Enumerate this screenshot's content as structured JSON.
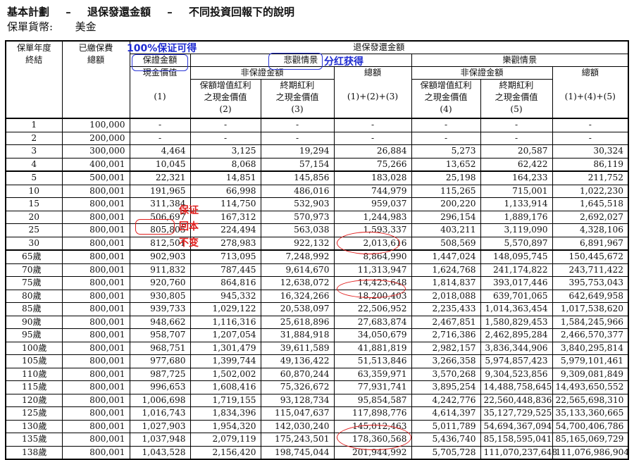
{
  "header": {
    "line1_a": "基本計劃",
    "line1_sep1": "–",
    "line1_b": "退保發還金額",
    "line1_sep2": "–",
    "line1_c": "不同投資回報下的說明",
    "line2_label": "保單貨幣:",
    "line2_value": "美金"
  },
  "table_head": {
    "col_year": "保單年度\n終結",
    "col_paid": "已繳保費\n總額",
    "surrender_group": "退保發還金額",
    "guaranteed": "保證金額",
    "pessimistic": "悲觀情景",
    "optimistic": "樂觀情景",
    "non_guaranteed_1": "非保證金額",
    "non_guaranteed_2": "非保證金額",
    "total_1": "總額",
    "total_2": "總額",
    "cash_value": "現金價值",
    "cash_value_no": "(1)",
    "rb_1": "保額增值紅利\n之現金價值",
    "rb_1_no": "(2)",
    "tb_1": "終期紅利\n之現金價值",
    "tb_1_no": "(3)",
    "total_1_no": "(1)+(2)+(3)",
    "rb_2": "保額增值紅利\n之現金價值",
    "rb_2_no": "(4)",
    "tb_2": "終期紅利\n之現金價值",
    "tb_2_no": "(5)",
    "total_2_no": "(1)+(4)+(5)"
  },
  "rows": [
    [
      "1",
      "100,000",
      "-",
      "-",
      "-",
      "-",
      "-",
      "-",
      "-"
    ],
    [
      "2",
      "200,000",
      "-",
      "-",
      "-",
      "-",
      "-",
      "-",
      "-"
    ],
    [
      "3",
      "300,000",
      "4,464",
      "3,125",
      "19,294",
      "26,884",
      "5,273",
      "20,587",
      "30,324"
    ],
    [
      "4",
      "400,001",
      "10,045",
      "8,068",
      "57,154",
      "75,266",
      "13,652",
      "62,422",
      "86,119"
    ],
    [
      "5",
      "500,001",
      "22,321",
      "14,851",
      "145,856",
      "183,028",
      "25,198",
      "164,233",
      "211,752"
    ],
    [
      "10",
      "800,001",
      "191,965",
      "66,998",
      "486,016",
      "744,979",
      "115,265",
      "715,001",
      "1,022,230"
    ],
    [
      "15",
      "800,001",
      "311,384",
      "114,750",
      "532,903",
      "959,037",
      "200,220",
      "1,133,914",
      "1,645,518"
    ],
    [
      "20",
      "800,001",
      "506,697",
      "167,312",
      "570,973",
      "1,244,983",
      "296,154",
      "1,889,176",
      "2,692,027"
    ],
    [
      "25",
      "800,001",
      "805,805",
      "224,494",
      "563,038",
      "1,593,337",
      "403,211",
      "3,119,090",
      "4,328,106"
    ],
    [
      "30",
      "800,001",
      "812,501",
      "278,983",
      "922,132",
      "2,013,616",
      "508,569",
      "5,570,897",
      "6,891,967"
    ],
    [
      "65歲",
      "800,001",
      "902,903",
      "713,095",
      "7,248,992",
      "8,864,990",
      "1,447,024",
      "148,095,745",
      "150,445,672"
    ],
    [
      "70歲",
      "800,001",
      "911,832",
      "787,445",
      "9,614,670",
      "11,313,947",
      "1,624,768",
      "241,174,822",
      "243,711,422"
    ],
    [
      "75歲",
      "800,001",
      "920,760",
      "864,816",
      "12,638,072",
      "14,423,648",
      "1,814,837",
      "393,017,446",
      "395,753,043"
    ],
    [
      "80歲",
      "800,001",
      "930,805",
      "945,332",
      "16,324,266",
      "18,200,403",
      "2,018,088",
      "639,701,065",
      "642,649,958"
    ],
    [
      "85歲",
      "800,001",
      "939,733",
      "1,029,122",
      "20,538,097",
      "22,506,952",
      "2,235,433",
      "1,014,363,454",
      "1,017,538,620"
    ],
    [
      "90歲",
      "800,001",
      "948,662",
      "1,116,316",
      "25,618,896",
      "27,683,874",
      "2,467,851",
      "1,580,829,453",
      "1,584,245,966"
    ],
    [
      "95歲",
      "800,001",
      "958,707",
      "1,207,054",
      "31,884,918",
      "34,050,679",
      "2,716,386",
      "2,462,895,284",
      "2,466,570,377"
    ],
    [
      "100歲",
      "800,001",
      "968,751",
      "1,301,479",
      "39,611,589",
      "41,881,819",
      "2,982,157",
      "3,836,344,906",
      "3,840,295,814"
    ],
    [
      "105歲",
      "800,001",
      "977,680",
      "1,399,744",
      "49,136,422",
      "51,513,846",
      "3,266,358",
      "5,974,857,423",
      "5,979,101,461"
    ],
    [
      "110歲",
      "800,001",
      "987,725",
      "1,502,002",
      "60,870,244",
      "63,359,971",
      "3,570,268",
      "9,304,523,856",
      "9,309,081,849"
    ],
    [
      "115歲",
      "800,001",
      "996,653",
      "1,608,416",
      "75,326,672",
      "77,931,741",
      "3,895,254",
      "14,488,758,645",
      "14,493,650,552"
    ],
    [
      "120歲",
      "800,001",
      "1,006,698",
      "1,719,155",
      "93,128,734",
      "95,854,587",
      "4,242,776",
      "22,560,448,836",
      "22,565,698,310"
    ],
    [
      "125歲",
      "800,001",
      "1,016,743",
      "1,834,396",
      "115,047,637",
      "117,898,776",
      "4,614,397",
      "35,127,729,525",
      "35,133,360,665"
    ],
    [
      "130歲",
      "800,001",
      "1,027,903",
      "1,954,320",
      "142,030,240",
      "145,012,463",
      "5,011,789",
      "54,694,367,094",
      "54,700,406,786"
    ],
    [
      "135歲",
      "800,001",
      "1,037,948",
      "2,079,119",
      "175,243,501",
      "178,360,568",
      "5,436,740",
      "85,158,595,041",
      "85,165,069,729"
    ],
    [
      "138歲",
      "800,001",
      "1,043,528",
      "2,156,420",
      "198,745,044",
      "201,944,992",
      "5,705,728",
      "111,070,237,648",
      "111,076,986,904"
    ]
  ],
  "annotations": {
    "guarantee_label": "100%保证可得",
    "dividend_label": "分红获得",
    "capital_note_1": "保证",
    "capital_note_2": "回本",
    "capital_note_3": "不变"
  },
  "colors": {
    "annotation_blue": "#1e2bd0",
    "annotation_red": "#e0201f"
  }
}
